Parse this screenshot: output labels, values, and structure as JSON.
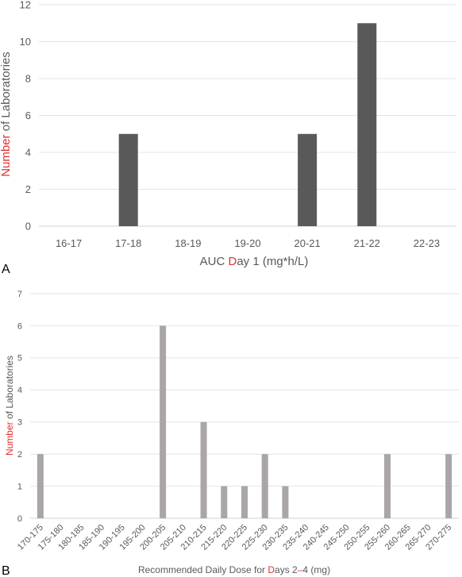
{
  "chart_data": [
    {
      "type": "bar",
      "panel_label": "A",
      "categories": [
        "16-17",
        "17-18",
        "18-19",
        "19-20",
        "20-21",
        "21-22",
        "22-23"
      ],
      "values": [
        0,
        5,
        0,
        0,
        5,
        11,
        0
      ],
      "xlabel_parts": [
        "AUC ",
        "D",
        "ay 1 (mg*h/L)"
      ],
      "ylabel_parts": [
        "Number",
        " of Laboratories"
      ],
      "ylim": [
        0,
        12
      ],
      "yticks": [
        "0",
        "2",
        "4",
        "6",
        "8",
        "10",
        "12"
      ],
      "grid": true,
      "bar_color": "#595959"
    },
    {
      "type": "bar",
      "panel_label": "B",
      "categories": [
        "170-175",
        "175-180",
        "180-185",
        "185-190",
        "190-195",
        "195-200",
        "200-205",
        "205-210",
        "210-215",
        "215-220",
        "220-225",
        "225-230",
        "230-235",
        "235-240",
        "240-245",
        "245-250",
        "250-255",
        "255-260",
        "260-265",
        "265-270",
        "270-275"
      ],
      "values": [
        2,
        0,
        0,
        0,
        0,
        0,
        6,
        0,
        3,
        1,
        1,
        2,
        1,
        0,
        0,
        0,
        0,
        2,
        0,
        0,
        2
      ],
      "xlabel_parts": [
        "Recommended Daily Dose for ",
        "D",
        "ays 2",
        "–",
        "4 (mg)"
      ],
      "ylabel_parts": [
        "Number",
        " of Laboratories"
      ],
      "ylim": [
        0,
        7
      ],
      "yticks": [
        "0",
        "1",
        "2",
        "3",
        "4",
        "5",
        "6",
        "7"
      ],
      "grid": true,
      "bar_color": "#aaa5a6"
    }
  ]
}
